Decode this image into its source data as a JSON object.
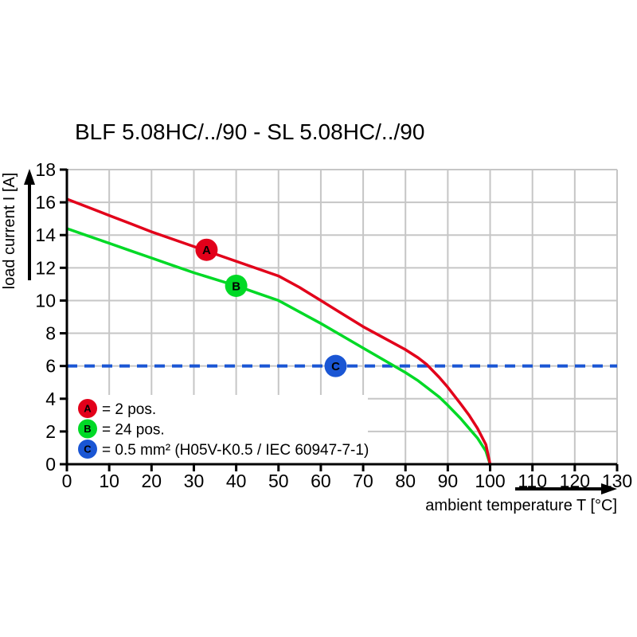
{
  "title": "BLF 5.08HC/../90 - SL 5.08HC/../90",
  "chart_data": {
    "type": "line",
    "title": "BLF 5.08HC/../90 - SL 5.08HC/../90",
    "xlabel": "ambient temperature T [°C]",
    "ylabel": "load current I [A]",
    "xlim": [
      0,
      130
    ],
    "ylim": [
      0,
      18
    ],
    "x_ticks": [
      0,
      10,
      20,
      30,
      40,
      50,
      60,
      70,
      80,
      90,
      100,
      110,
      120,
      130
    ],
    "y_ticks": [
      0,
      2,
      4,
      6,
      8,
      10,
      12,
      14,
      16,
      18
    ],
    "grid": true,
    "legend_position": "bottom-left",
    "colors": {
      "red": "#e2001a",
      "green": "#00d926",
      "blue": "#1a56d4",
      "grid": "#c6c6c6",
      "axis": "#000000",
      "background": "#ffffff"
    },
    "series": [
      {
        "name": "A",
        "legend": "= 2 pos.",
        "color": "#e2001a",
        "marker_at": {
          "x": 33,
          "y": 13.1
        },
        "points": [
          [
            0,
            16.2
          ],
          [
            5,
            15.7
          ],
          [
            10,
            15.2
          ],
          [
            15,
            14.7
          ],
          [
            20,
            14.2
          ],
          [
            25,
            13.75
          ],
          [
            30,
            13.3
          ],
          [
            35,
            12.85
          ],
          [
            40,
            12.4
          ],
          [
            45,
            11.95
          ],
          [
            50,
            11.5
          ],
          [
            55,
            10.8
          ],
          [
            60,
            10.0
          ],
          [
            65,
            9.2
          ],
          [
            70,
            8.4
          ],
          [
            75,
            7.7
          ],
          [
            80,
            7.0
          ],
          [
            83,
            6.5
          ],
          [
            85,
            6.1
          ],
          [
            88,
            5.3
          ],
          [
            90,
            4.7
          ],
          [
            93,
            3.7
          ],
          [
            95,
            3.0
          ],
          [
            97,
            2.2
          ],
          [
            99,
            1.2
          ],
          [
            100,
            0
          ]
        ]
      },
      {
        "name": "B",
        "legend": "= 24 pos.",
        "color": "#00d926",
        "marker_at": {
          "x": 40,
          "y": 10.9
        },
        "points": [
          [
            0,
            14.4
          ],
          [
            5,
            13.95
          ],
          [
            10,
            13.5
          ],
          [
            15,
            13.05
          ],
          [
            20,
            12.6
          ],
          [
            25,
            12.15
          ],
          [
            30,
            11.7
          ],
          [
            35,
            11.3
          ],
          [
            40,
            10.9
          ],
          [
            45,
            10.45
          ],
          [
            50,
            10.0
          ],
          [
            55,
            9.3
          ],
          [
            60,
            8.6
          ],
          [
            65,
            7.85
          ],
          [
            70,
            7.1
          ],
          [
            75,
            6.35
          ],
          [
            80,
            5.6
          ],
          [
            83,
            5.1
          ],
          [
            85,
            4.7
          ],
          [
            88,
            4.1
          ],
          [
            90,
            3.6
          ],
          [
            93,
            2.8
          ],
          [
            95,
            2.2
          ],
          [
            97,
            1.6
          ],
          [
            99,
            0.8
          ],
          [
            100,
            0
          ]
        ]
      },
      {
        "name": "C",
        "legend": "= 0.5 mm² (H05V-K0.5 / IEC 60947-7-1)",
        "color": "#1a56d4",
        "marker_at": {
          "x": 63.5,
          "y": 6
        },
        "reference_line": {
          "y": 6,
          "style": "dashed"
        }
      }
    ]
  }
}
